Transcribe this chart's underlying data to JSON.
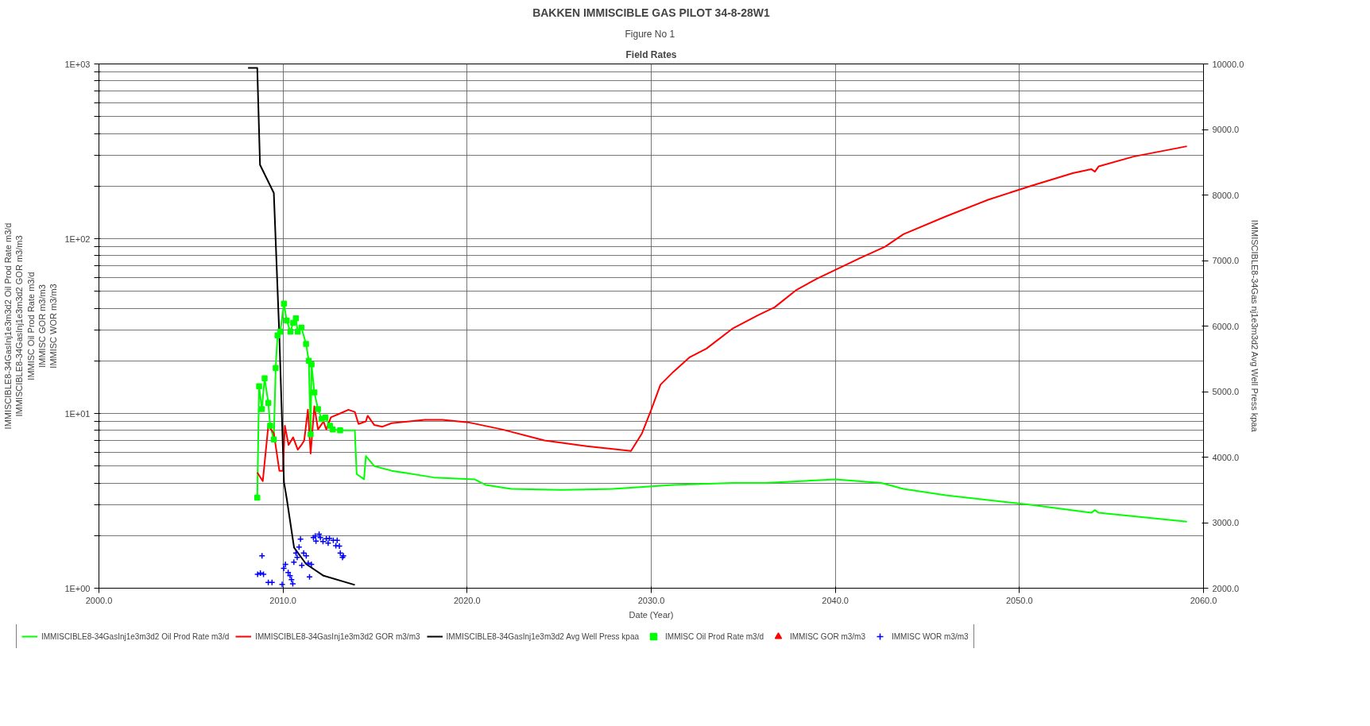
{
  "chart_data": {
    "type": "line",
    "title": "BAKKEN IMMISCIBLE GAS PILOT 34-8-28W1",
    "subtitle": "Figure No  1",
    "annotations": [
      "Field Rates"
    ],
    "xlabel": "Date (Year)",
    "ylabel": "IMMISCIBLE8-34GasInj1e3m3d2 Oil Prod Rate m3/d\nIMMISCIBLE8-34GasInj1e3m3d2 GOR m3/m3\nIMMISC Oil Prod Rate m3/d\nIMMISC GOR m3/m3\nIMMISC WOR m3/m3",
    "y2label": "IMMISCIBLE8-34Gas nj1e3m3d2 Avg Well Press kpaa",
    "log": "y",
    "grid": true,
    "legend": "bottom",
    "line_style": "solid",
    "xlim": [
      2000,
      2060
    ],
    "xticks": [
      {
        "value": 2000,
        "label": "2000.0"
      },
      {
        "value": 2010,
        "label": "2010.0"
      },
      {
        "value": 2020,
        "label": "2020.0"
      },
      {
        "value": 2030,
        "label": "2030.0"
      },
      {
        "value": 2040,
        "label": "2040.0"
      },
      {
        "value": 2050,
        "label": "2050.0"
      },
      {
        "value": 2060,
        "label": "2060.0"
      }
    ],
    "ylim": [
      1,
      1000
    ],
    "yticks": [
      {
        "value": 1,
        "label": "1E+00"
      },
      {
        "value": 2,
        "label": null
      },
      {
        "value": 3,
        "label": null
      },
      {
        "value": 4,
        "label": null
      },
      {
        "value": 5,
        "label": null
      },
      {
        "value": 6,
        "label": null
      },
      {
        "value": 7,
        "label": null
      },
      {
        "value": 8,
        "label": null
      },
      {
        "value": 9,
        "label": null
      },
      {
        "value": 10,
        "label": "1E+01"
      },
      {
        "value": 20,
        "label": null
      },
      {
        "value": 30,
        "label": null
      },
      {
        "value": 40,
        "label": null
      },
      {
        "value": 50,
        "label": null
      },
      {
        "value": 60,
        "label": null
      },
      {
        "value": 70,
        "label": null
      },
      {
        "value": 80,
        "label": null
      },
      {
        "value": 90,
        "label": null
      },
      {
        "value": 100,
        "label": "1E+02"
      },
      {
        "value": 200,
        "label": null
      },
      {
        "value": 300,
        "label": null
      },
      {
        "value": 400,
        "label": null
      },
      {
        "value": 500,
        "label": null
      },
      {
        "value": 600,
        "label": null
      },
      {
        "value": 700,
        "label": null
      },
      {
        "value": 800,
        "label": null
      },
      {
        "value": 900,
        "label": null
      },
      {
        "value": 1000,
        "label": "1E+03"
      }
    ],
    "y2lim": [
      2000,
      10000
    ],
    "y2ticks": [
      {
        "value": 2000,
        "label": "2000.0"
      },
      {
        "value": 3000,
        "label": "3000.0"
      },
      {
        "value": 4000,
        "label": "4000.0"
      },
      {
        "value": 5000,
        "label": "5000.0"
      },
      {
        "value": 6000,
        "label": "6000.0"
      },
      {
        "value": 7000,
        "label": "7000.0"
      },
      {
        "value": 8000,
        "label": "8000.0"
      },
      {
        "value": 9000,
        "label": "9000.0"
      },
      {
        "value": 10000,
        "label": "10000.0"
      }
    ],
    "series": [
      {
        "name": "IMMISCIBLE8-34GasInj1e3m3d2 Oil Prod Rate m3/d",
        "color": "#00ff00",
        "x": [
          2008.6,
          2008.7,
          2008.85,
          2009.0,
          2009.2,
          2009.3,
          2009.5,
          2009.6,
          2009.7,
          2009.85,
          2010.05,
          2010.2,
          2010.4,
          2010.55,
          2010.7,
          2010.8,
          2011.0,
          2011.25,
          2011.4,
          2011.5,
          2011.55,
          2011.7,
          2011.9,
          2012.1,
          2012.3,
          2012.55,
          2012.7,
          2013.1,
          2013.55,
          2013.9,
          2014.0,
          2014.4,
          2014.5,
          2014.95,
          2015.9,
          2018.2,
          2020.4,
          2021.0,
          2022.4,
          2025.1,
          2027.9,
          2031.2,
          2034.4,
          2036.2,
          2040.0,
          2042.5,
          2043.7,
          2046.0,
          2050.6,
          2053.9,
          2054.1,
          2054.3,
          2059.1
        ],
        "values": [
          3.3,
          14.3,
          10.6,
          15.9,
          11.5,
          8.5,
          7.1,
          18.2,
          28,
          29.4,
          42.5,
          34,
          29.4,
          33,
          35,
          29.4,
          31,
          25,
          20,
          7.6,
          19.1,
          13.2,
          10.6,
          9.3,
          9.5,
          8.5,
          8.1,
          8.0,
          8.0,
          8.0,
          4.5,
          4.2,
          5.7,
          5.0,
          4.7,
          4.3,
          4.2,
          3.9,
          3.7,
          3.65,
          3.7,
          3.9,
          4.0,
          4.0,
          4.2,
          4.0,
          3.7,
          3.4,
          3.0,
          2.7,
          2.8,
          2.7,
          2.4
        ]
      },
      {
        "name": "IMMISCIBLE8-34GasInj1e3m3d2 GOR m3/m3",
        "color": "#ff0000",
        "x": [
          2008.6,
          2008.9,
          2009.2,
          2009.5,
          2009.8,
          2010.0,
          2010.1,
          2010.3,
          2010.55,
          2010.8,
          2011.0,
          2011.15,
          2011.35,
          2011.5,
          2011.7,
          2011.9,
          2012.2,
          2012.35,
          2012.6,
          2013.1,
          2013.55,
          2013.9,
          2014.1,
          2014.5,
          2014.6,
          2014.95,
          2015.4,
          2015.9,
          2017.7,
          2018.65,
          2020.05,
          2021.9,
          2024.2,
          2026.5,
          2028.9,
          2029.5,
          2030.0,
          2030.5,
          2031.2,
          2032.1,
          2033.0,
          2034.4,
          2035.8,
          2036.7,
          2037.9,
          2039.0,
          2041.3,
          2042.7,
          2043.7,
          2046.0,
          2048.3,
          2050.6,
          2052.9,
          2053.9,
          2054.1,
          2054.3,
          2056.2,
          2059.1
        ],
        "values": [
          4.6,
          4.1,
          8.5,
          7.7,
          4.7,
          4.7,
          8.5,
          6.6,
          7.3,
          6.2,
          6.6,
          7.0,
          10.5,
          5.9,
          11,
          8.1,
          9.0,
          8.1,
          9.5,
          10,
          10.5,
          10.2,
          8.7,
          9.0,
          9.7,
          8.6,
          8.4,
          8.8,
          9.2,
          9.2,
          8.9,
          8.1,
          7.0,
          6.5,
          6.1,
          7.7,
          10.5,
          14.6,
          17.3,
          21,
          23.5,
          30.5,
          36.5,
          40.5,
          51,
          59,
          77,
          90,
          106,
          134,
          167,
          200,
          237,
          250,
          242,
          259,
          295,
          338
        ]
      },
      {
        "name": "IMMISCIBLE8-34GasInj1e3m3d2 Avg Well Press kpaa",
        "color": "#000000",
        "axis": "y2",
        "x": [
          2008.1,
          2008.6,
          2008.75,
          2009.5,
          2009.8,
          2010.05,
          2010.2,
          2010.6,
          2011.25,
          2012.2,
          2013.9
        ],
        "values": [
          9940,
          9940,
          8460,
          8030,
          5850,
          3620,
          3370,
          2620,
          2370,
          2190,
          2050
        ]
      },
      {
        "type": "scatter",
        "name": "IMMISC Oil Prod Rate m3/d",
        "color": "#00ff00",
        "marker": "square",
        "x": [
          2008.6,
          2008.7,
          2008.85,
          2009.0,
          2009.2,
          2009.3,
          2009.5,
          2009.6,
          2009.7,
          2009.85,
          2010.05,
          2010.2,
          2010.4,
          2010.55,
          2010.7,
          2010.8,
          2011.0,
          2011.25,
          2011.4,
          2011.5,
          2011.55,
          2011.7,
          2011.9,
          2012.1,
          2012.3,
          2012.55,
          2012.7,
          2013.1
        ],
        "values": [
          3.3,
          14.3,
          10.6,
          15.9,
          11.5,
          8.5,
          7.1,
          18.2,
          28,
          29.4,
          42.5,
          34,
          29.4,
          33,
          35,
          29.4,
          31,
          25,
          20,
          7.6,
          19.1,
          13.2,
          10.6,
          9.3,
          9.5,
          8.5,
          8.1,
          8.0
        ]
      },
      {
        "type": "scatter",
        "name": "IMMISC GOR m3/m3",
        "color": "#ff0000",
        "marker": "triangle"
      },
      {
        "type": "scatter",
        "name": "IMMISC WOR m3/m3",
        "color": "#0000ff",
        "marker": "cross",
        "x": [
          2008.86,
          2008.62,
          2008.77,
          2008.94,
          2009.2,
          2009.4,
          2009.95,
          2010.04,
          2010.13,
          2010.28,
          2010.38,
          2010.46,
          2010.53,
          2010.59,
          2010.7,
          2010.77,
          2010.87,
          2010.95,
          2011.02,
          2011.12,
          2011.26,
          2011.37,
          2011.54,
          2011.44,
          2011.65,
          2011.75,
          2011.79,
          2011.96,
          2012.03,
          2012.17,
          2012.35,
          2012.52,
          2012.45,
          2012.73,
          2012.94,
          2012.87,
          2013.06,
          2013.11,
          2013.23,
          2013.28
        ],
        "values": [
          1.53,
          1.2,
          1.22,
          1.2,
          1.08,
          1.08,
          1.05,
          1.3,
          1.37,
          1.23,
          1.18,
          1.12,
          1.06,
          1.41,
          1.59,
          1.5,
          1.72,
          1.91,
          1.35,
          1.59,
          1.53,
          1.39,
          1.37,
          1.16,
          1.95,
          1.99,
          1.86,
          2.04,
          1.95,
          1.85,
          1.92,
          1.93,
          1.81,
          1.88,
          1.88,
          1.75,
          1.74,
          1.59,
          1.5,
          1.53
        ]
      }
    ]
  }
}
